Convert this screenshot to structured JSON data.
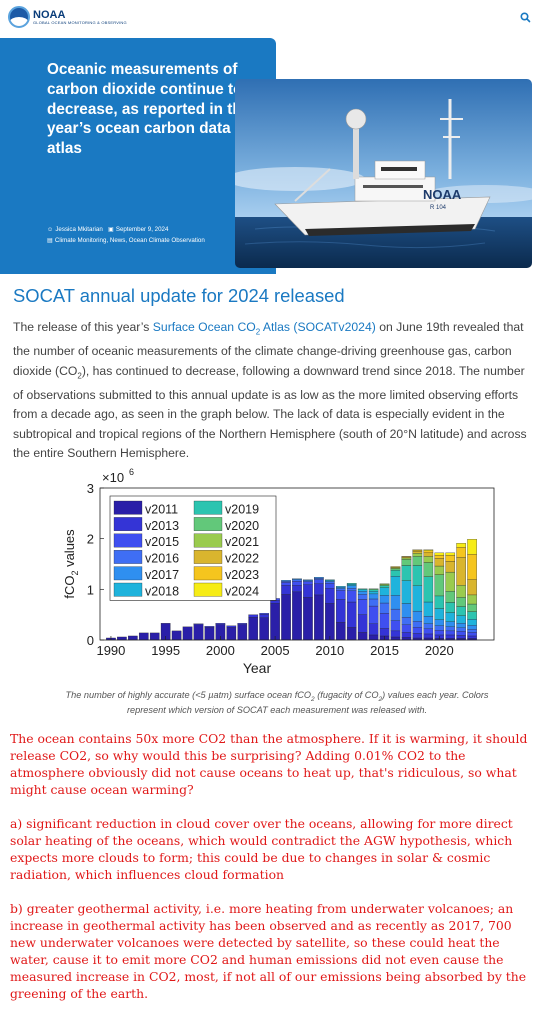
{
  "header": {
    "logo_main": "NOAA",
    "logo_sub": "GLOBAL OCEAN MONITORING & OBSERVING",
    "search_icon": "search-icon"
  },
  "hero": {
    "title": "Oceanic measurements of carbon dioxide continue to decrease, as reported in this year’s ocean carbon data atlas",
    "author": "Jessica Mkitarian",
    "date": "September 9, 2024",
    "categories": "Climate Monitoring, News, Ocean Climate Observation",
    "image_alt": "NOAA research ship at sea",
    "ship_name": "NOAA",
    "ship_number": "R 104"
  },
  "article": {
    "heading": "SOCAT annual update for 2024 released",
    "p_pre": "The release of this year’s ",
    "link_text_1": "Surface Ocean CO",
    "link_sub": "2",
    "link_text_2": " Atlas (SOCATv2024)",
    "p_1": " on June 19th revealed that the number of oceanic measurements of the climate change-driving greenhouse gas, carbon dioxide (CO",
    "p_sub": "2",
    "p_2": "), has continued to decrease, following a downward trend since 2018. The number of observations submitted to this annual update is as low as the more limited observing efforts from a decade ago, as seen in the graph below. The lack of data is especially evident in the subtropical and tropical regions of the Northern Hemisphere (south of 20°N latitude) and across the entire Southern Hemisphere."
  },
  "caption": {
    "c1": "The number of highly accurate (<5 µatm) surface ocean fCO",
    "c1_sub": "2",
    "c2": " (fugacity of CO",
    "c2_sub": "2",
    "c3": ") values each year. Colors represent which version of SOCAT each measurement was released with."
  },
  "comment": {
    "p1": "The ocean contains 50x more CO2 than the atmosphere. If it is warming, it should release CO2, so why would this be surprising? Adding 0.01% CO2 to the atmosphere obviously did not cause oceans to heat up, that's ridiculous, so what might cause ocean warming?",
    "p2": "a) significant reduction in cloud cover over the oceans, allowing for more direct solar heating of  the oceans, which would contradict the AGW hypothesis, which expects more clouds to form; this could be due to changes in solar & cosmic radiation, which influences cloud formation",
    "p3": "b) greater geothermal activity, i.e. more heating from underwater volcanoes; an increase in geothermal activity has been observed and as recently as 2017, 700 new underwater volcanoes were detected by satellite, so these could heat the water, cause it to emit more CO2 and human emissions did not even cause the measured increase in CO2, most, if not all of our emissions being absorbed by the greening of the earth."
  },
  "chart_data": {
    "type": "bar",
    "stacked": true,
    "xlabel": "Year",
    "ylabel_main": "fCO",
    "ylabel_sub": "2",
    "ylabel_rest": " values",
    "exponent_base": "×10",
    "exponent": "6",
    "xlim": [
      1989,
      2025
    ],
    "ylim": [
      0,
      3
    ],
    "xticks": [
      "1990",
      "1995",
      "2000",
      "2005",
      "2010",
      "2015",
      "2020"
    ],
    "xtick_values": [
      1990,
      1995,
      2000,
      2005,
      2010,
      2015,
      2020
    ],
    "yticks": [
      "0",
      "1",
      "2",
      "3"
    ],
    "ytick_values": [
      0,
      1,
      2,
      3
    ],
    "legend_position": "top-left",
    "grid": false,
    "colors": {
      "v2011": "#2a1fa8",
      "v2013": "#3434d6",
      "v2015": "#3f4ff0",
      "v2016": "#3f6ef4",
      "v2017": "#2f8ff0",
      "v2018": "#1fb3dc",
      "v2019": "#2cc4b0",
      "v2020": "#62c87a",
      "v2021": "#9acb4e",
      "v2022": "#d9b52e",
      "v2023": "#f5c51e",
      "v2024": "#f6ec16"
    },
    "legend_col1": [
      "v2011",
      "v2013",
      "v2015",
      "v2016",
      "v2017",
      "v2018"
    ],
    "legend_col2": [
      "v2019",
      "v2020",
      "v2021",
      "v2022",
      "v2023",
      "v2024"
    ],
    "years": [
      1990,
      1991,
      1992,
      1993,
      1994,
      1995,
      1996,
      1997,
      1998,
      1999,
      2000,
      2001,
      2002,
      2003,
      2004,
      2005,
      2006,
      2007,
      2008,
      2009,
      2010,
      2011,
      2012,
      2013,
      2014,
      2015,
      2016,
      2017,
      2018,
      2019,
      2020,
      2021,
      2022,
      2023
    ],
    "series": [
      {
        "name": "v2011",
        "values": [
          0.04,
          0.06,
          0.08,
          0.14,
          0.14,
          0.33,
          0.18,
          0.26,
          0.3,
          0.25,
          0.3,
          0.25,
          0.3,
          0.45,
          0.44,
          0.72,
          0.9,
          0.95,
          0.84,
          0.89,
          0.72,
          0.35,
          0.25,
          0.15,
          0.1,
          0.08,
          0.06,
          0.05,
          0.04,
          0.04,
          0.03,
          0.03,
          0.03,
          0.03
        ]
      },
      {
        "name": "v2013",
        "values": [
          0,
          0,
          0,
          0,
          0,
          0,
          0,
          0,
          0.02,
          0.02,
          0.03,
          0.03,
          0.03,
          0.05,
          0.07,
          0.06,
          0.18,
          0.13,
          0.25,
          0.22,
          0.3,
          0.45,
          0.5,
          0.35,
          0.22,
          0.15,
          0.12,
          0.1,
          0.09,
          0.08,
          0.07,
          0.07,
          0.06,
          0.05
        ]
      },
      {
        "name": "v2015",
        "values": [
          0,
          0,
          0,
          0,
          0,
          0,
          0,
          0,
          0,
          0,
          0,
          0,
          0,
          0,
          0.02,
          0.04,
          0.06,
          0.08,
          0.06,
          0.08,
          0.1,
          0.18,
          0.22,
          0.3,
          0.35,
          0.3,
          0.2,
          0.15,
          0.12,
          0.1,
          0.09,
          0.08,
          0.08,
          0.07
        ]
      },
      {
        "name": "v2016",
        "values": [
          0,
          0,
          0,
          0,
          0,
          0,
          0,
          0,
          0,
          0,
          0,
          0,
          0,
          0,
          0,
          0,
          0.02,
          0.03,
          0.02,
          0.03,
          0.03,
          0.03,
          0.05,
          0.1,
          0.14,
          0.2,
          0.23,
          0.15,
          0.12,
          0.1,
          0.09,
          0.08,
          0.07,
          0.06
        ]
      },
      {
        "name": "v2017",
        "values": [
          0,
          0,
          0,
          0,
          0,
          0,
          0,
          0,
          0,
          0,
          0,
          0,
          0,
          0,
          0,
          0,
          0.02,
          0.02,
          0.02,
          0.02,
          0.02,
          0.03,
          0.05,
          0.06,
          0.1,
          0.15,
          0.27,
          0.27,
          0.2,
          0.15,
          0.12,
          0.1,
          0.09,
          0.08
        ]
      },
      {
        "name": "v2018",
        "values": [
          0,
          0,
          0,
          0,
          0,
          0,
          0,
          0,
          0,
          0,
          0,
          0,
          0,
          0,
          0,
          0,
          0,
          0,
          0,
          0,
          0.02,
          0.02,
          0.03,
          0.03,
          0.05,
          0.15,
          0.38,
          0.45,
          0.5,
          0.28,
          0.22,
          0.18,
          0.15,
          0.12
        ]
      },
      {
        "name": "v2019",
        "values": [
          0,
          0,
          0,
          0,
          0,
          0,
          0,
          0,
          0,
          0,
          0,
          0,
          0,
          0,
          0,
          0,
          0,
          0,
          0,
          0,
          0,
          0,
          0.02,
          0.02,
          0.03,
          0.04,
          0.12,
          0.3,
          0.4,
          0.5,
          0.25,
          0.2,
          0.18,
          0.15
        ]
      },
      {
        "name": "v2020",
        "values": [
          0,
          0,
          0,
          0,
          0,
          0,
          0,
          0,
          0,
          0,
          0,
          0,
          0,
          0,
          0,
          0,
          0,
          0,
          0,
          0,
          0,
          0,
          0,
          0,
          0.02,
          0.02,
          0.03,
          0.12,
          0.18,
          0.28,
          0.42,
          0.22,
          0.18,
          0.15
        ]
      },
      {
        "name": "v2021",
        "values": [
          0,
          0,
          0,
          0,
          0,
          0,
          0,
          0,
          0,
          0,
          0,
          0,
          0,
          0,
          0,
          0,
          0,
          0,
          0,
          0,
          0,
          0,
          0,
          0,
          0,
          0.02,
          0.02,
          0.03,
          0.06,
          0.12,
          0.17,
          0.38,
          0.24,
          0.18
        ]
      },
      {
        "name": "v2022",
        "values": [
          0,
          0,
          0,
          0,
          0,
          0,
          0,
          0,
          0,
          0,
          0,
          0,
          0,
          0,
          0,
          0,
          0,
          0,
          0,
          0,
          0,
          0,
          0,
          0,
          0,
          0,
          0.02,
          0.02,
          0.04,
          0.07,
          0.15,
          0.21,
          0.55,
          0.3
        ]
      },
      {
        "name": "v2023",
        "values": [
          0,
          0,
          0,
          0,
          0,
          0,
          0,
          0,
          0,
          0,
          0,
          0,
          0,
          0,
          0,
          0,
          0,
          0,
          0,
          0,
          0,
          0,
          0,
          0,
          0,
          0,
          0,
          0.01,
          0.02,
          0.04,
          0.06,
          0.12,
          0.2,
          0.5
        ]
      },
      {
        "name": "v2024",
        "values": [
          0,
          0,
          0,
          0,
          0,
          0,
          0,
          0,
          0,
          0,
          0,
          0,
          0,
          0,
          0,
          0,
          0,
          0,
          0,
          0,
          0,
          0,
          0,
          0,
          0,
          0,
          0,
          0,
          0.01,
          0.02,
          0.05,
          0.05,
          0.08,
          0.3
        ]
      }
    ]
  }
}
